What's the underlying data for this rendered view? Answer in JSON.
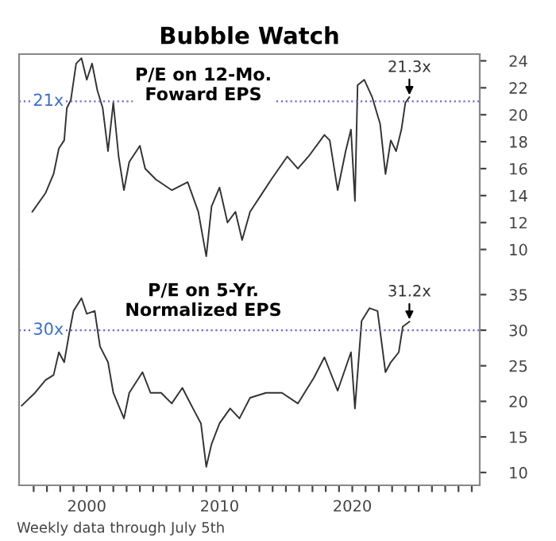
{
  "chart_data": [
    {
      "type": "line",
      "title": "Bubble Watch",
      "subtitle": "P/E on 12-Mo.\nFoward EPS",
      "tick_labels": "y",
      "grid": false,
      "xlim": [
        1994.9,
        2029.6
      ],
      "ylim": [
        8.5,
        24.5
      ],
      "yticks": [
        10,
        12,
        14,
        16,
        18,
        20,
        22,
        24
      ],
      "ref_lines": [
        {
          "axis": "y",
          "value": 21,
          "label": "21x",
          "color": "#6a6ae0",
          "line_style": "dotted"
        }
      ],
      "annotations": [
        {
          "text": "21.3x",
          "x": 2024.3,
          "y": 21.3
        }
      ],
      "series": [
        {
          "color": "#333333",
          "x": [
            1995.9,
            1996.9,
            1997.5,
            1997.9,
            1998.3,
            1998.5,
            1998.8,
            1999.2,
            1999.6,
            2000.0,
            2000.4,
            2000.8,
            2001.2,
            2001.6,
            2002.0,
            2002.4,
            2002.8,
            2003.2,
            2004.0,
            2004.4,
            2005.2,
            2006.4,
            2007.6,
            2008.4,
            2009.0,
            2009.4,
            2010.0,
            2010.6,
            2011.2,
            2011.7,
            2012.3,
            2013.1,
            2013.9,
            2015.1,
            2015.9,
            2016.7,
            2017.9,
            2018.3,
            2018.9,
            2019.5,
            2019.9,
            2020.2,
            2020.4,
            2020.9,
            2021.5,
            2022.1,
            2022.5,
            2022.9,
            2023.3,
            2023.7,
            2024.0,
            2024.3
          ],
          "values": [
            12.8,
            14.2,
            15.6,
            17.5,
            18.1,
            20.5,
            21.1,
            23.8,
            24.2,
            22.6,
            23.8,
            21.8,
            20.5,
            17.3,
            20.9,
            16.9,
            14.4,
            16.5,
            17.7,
            16.0,
            15.2,
            14.4,
            15.0,
            12.8,
            9.5,
            13.2,
            14.6,
            12.0,
            12.8,
            10.7,
            12.8,
            14.0,
            15.2,
            16.9,
            16.0,
            16.9,
            18.5,
            18.1,
            14.4,
            17.3,
            18.9,
            13.6,
            22.2,
            22.6,
            21.3,
            19.3,
            15.6,
            18.1,
            17.3,
            18.9,
            20.9,
            21.3
          ]
        }
      ]
    },
    {
      "type": "line",
      "subtitle": "P/E on 5-Yr.\nNormalized EPS",
      "grid": false,
      "xlim": [
        1994.9,
        2029.6
      ],
      "ylim": [
        8.2,
        38.5
      ],
      "yticks": [
        10,
        15,
        20,
        25,
        30,
        35
      ],
      "xticks": [
        {
          "value": 1996,
          "label": null
        },
        {
          "value": 1997,
          "label": null
        },
        {
          "value": 1998,
          "label": null
        },
        {
          "value": 1999,
          "label": null
        },
        2000,
        {
          "value": 2001,
          "label": null
        },
        {
          "value": 2002,
          "label": null
        },
        {
          "value": 2003,
          "label": null
        },
        {
          "value": 2004,
          "label": null
        },
        {
          "value": 2005,
          "label": null
        },
        {
          "value": 2006,
          "label": null
        },
        {
          "value": 2007,
          "label": null
        },
        {
          "value": 2008,
          "label": null
        },
        {
          "value": 2009,
          "label": null
        },
        2010,
        {
          "value": 2011,
          "label": null
        },
        {
          "value": 2012,
          "label": null
        },
        {
          "value": 2013,
          "label": null
        },
        {
          "value": 2014,
          "label": null
        },
        {
          "value": 2015,
          "label": null
        },
        {
          "value": 2016,
          "label": null
        },
        {
          "value": 2017,
          "label": null
        },
        {
          "value": 2018,
          "label": null
        },
        {
          "value": 2019,
          "label": null
        },
        2020,
        {
          "value": 2021,
          "label": null
        },
        {
          "value": 2022,
          "label": null
        },
        {
          "value": 2023,
          "label": null
        },
        {
          "value": 2024,
          "label": null
        },
        {
          "value": 2025,
          "label": null
        },
        {
          "value": 2026,
          "label": null
        },
        {
          "value": 2027,
          "label": null
        },
        {
          "value": 2028,
          "label": null
        },
        {
          "value": 2029,
          "label": null
        }
      ],
      "ref_lines": [
        {
          "axis": "y",
          "value": 30,
          "label": "30x",
          "color": "#6a6ae0",
          "line_style": "dotted"
        }
      ],
      "annotations": [
        {
          "text": "31.2x",
          "x": 2024.3,
          "y": 31.2
        },
        "Weekly data through July 5th"
      ],
      "series": [
        {
          "color": "#333333",
          "x": [
            1995.1,
            1996.1,
            1996.9,
            1997.5,
            1997.9,
            1998.3,
            1998.7,
            1999.0,
            1999.6,
            2000.0,
            2000.6,
            2001.0,
            2001.6,
            2002.0,
            2002.8,
            2003.2,
            2004.2,
            2004.8,
            2005.6,
            2006.4,
            2007.2,
            2008.0,
            2008.6,
            2009.0,
            2009.4,
            2010.0,
            2010.8,
            2011.5,
            2012.3,
            2013.5,
            2014.7,
            2015.9,
            2017.1,
            2017.9,
            2018.9,
            2019.9,
            2020.2,
            2020.7,
            2021.3,
            2021.9,
            2022.5,
            2022.9,
            2023.5,
            2023.8,
            2024.3
          ],
          "values": [
            19.4,
            21.2,
            23.0,
            23.7,
            26.9,
            25.5,
            29.8,
            32.7,
            34.5,
            32.3,
            32.7,
            27.7,
            25.5,
            21.2,
            17.6,
            21.2,
            24.1,
            21.2,
            21.2,
            19.7,
            21.9,
            19.0,
            16.9,
            10.8,
            14.0,
            16.9,
            19.0,
            17.6,
            20.5,
            21.2,
            21.2,
            19.7,
            23.3,
            26.2,
            21.5,
            26.9,
            19.0,
            31.3,
            33.1,
            32.7,
            24.1,
            25.5,
            26.9,
            30.5,
            31.2
          ]
        }
      ]
    }
  ]
}
